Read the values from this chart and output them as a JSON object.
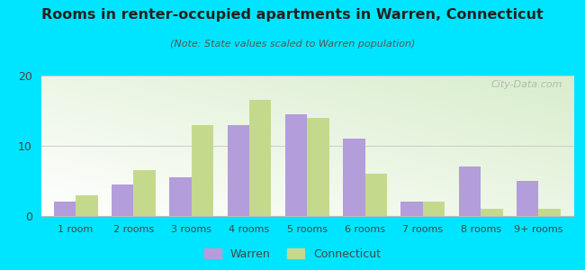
{
  "title": "Rooms in renter-occupied apartments in Warren, Connecticut",
  "subtitle": "(Note: State values scaled to Warren population)",
  "categories": [
    "1 room",
    "2 rooms",
    "3 rooms",
    "4 rooms",
    "5 rooms",
    "6 rooms",
    "7 rooms",
    "8 rooms",
    "9+ rooms"
  ],
  "warren_values": [
    2.0,
    4.5,
    5.5,
    13.0,
    14.5,
    11.0,
    2.0,
    7.0,
    5.0
  ],
  "connecticut_values": [
    3.0,
    6.5,
    13.0,
    16.5,
    14.0,
    6.0,
    2.0,
    1.0,
    1.0
  ],
  "warren_color": "#b39ddb",
  "connecticut_color": "#c5d98d",
  "background_outer": "#00e5ff",
  "ylim": [
    0,
    20
  ],
  "yticks": [
    0,
    10,
    20
  ],
  "bar_width": 0.38,
  "legend_warren": "Warren",
  "legend_connecticut": "Connecticut",
  "watermark": "City-Data.com"
}
